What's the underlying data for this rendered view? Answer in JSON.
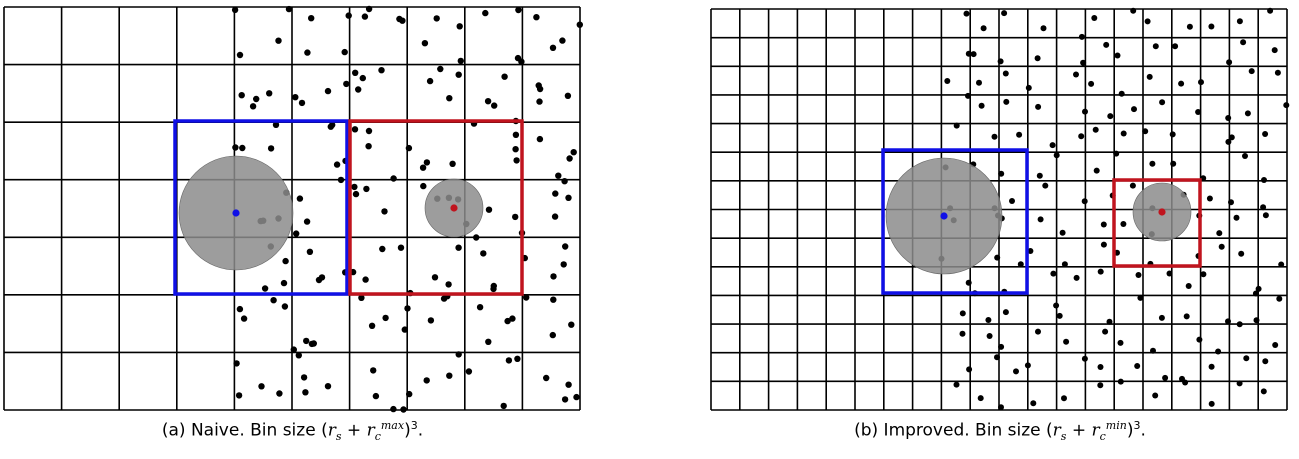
{
  "panels": [
    {
      "id": "a",
      "grid": {
        "cols": 10,
        "rows": 7
      },
      "dense_from_col": 4,
      "points_per_cell": 4,
      "caption": {
        "label": "(a) Naive. Bin size ",
        "exp_label": "max",
        "power": "3"
      }
    },
    {
      "id": "b",
      "grid": {
        "cols": 20,
        "rows": 14
      },
      "dense_from_col": 8,
      "points_per_cell": 1,
      "caption": {
        "label": "(b) Improved. Bin size ",
        "exp_label": "min",
        "power": "3"
      }
    }
  ],
  "colors": {
    "blue_box": "#1010e6",
    "red_box": "#c0141e",
    "circle_fill": "#8c8c8c",
    "point": "#000000",
    "grid": "#000000"
  },
  "symbols": {
    "r": "r",
    "s": "s",
    "c": "c"
  }
}
